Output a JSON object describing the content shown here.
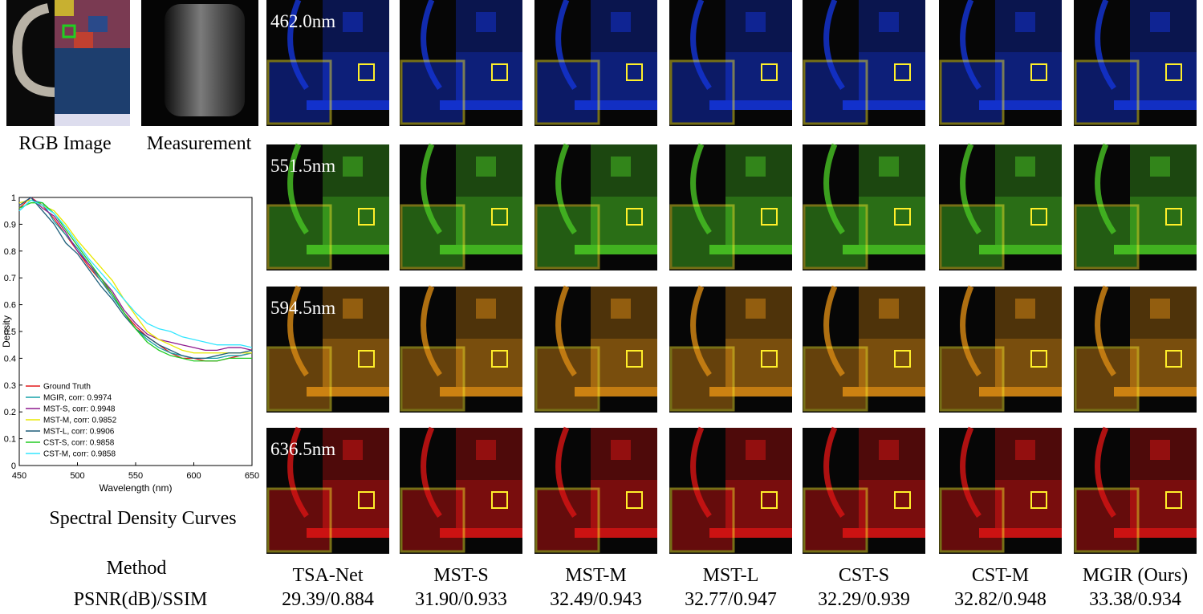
{
  "figure": {
    "inputs": [
      "RGB Image",
      "Measurement"
    ],
    "rows": [
      "462.0nm",
      "551.5nm",
      "594.5nm",
      "636.5nm"
    ],
    "header": {
      "method": "Method",
      "metric": "PSNR(dB)/SSIM"
    },
    "methods": [
      {
        "name": "TSA-Net",
        "score": "29.39/0.884"
      },
      {
        "name": "MST-S",
        "score": "31.90/0.933"
      },
      {
        "name": "MST-M",
        "score": "32.49/0.943"
      },
      {
        "name": "MST-L",
        "score": "32.77/0.947"
      },
      {
        "name": "CST-S",
        "score": "32.29/0.939"
      },
      {
        "name": "CST-M",
        "score": "32.82/0.948"
      },
      {
        "name": "MGIR (Ours)",
        "score": "33.38/0.934"
      }
    ]
  },
  "chart_data": {
    "type": "line",
    "title": "Spectral Density Curves",
    "x_label": "Wavelength (nm)",
    "y_label": "Density",
    "x": [
      450,
      460,
      470,
      480,
      490,
      500,
      510,
      520,
      530,
      540,
      550,
      560,
      570,
      580,
      590,
      600,
      610,
      620,
      630,
      640,
      650
    ],
    "series": [
      {
        "name": "Ground Truth",
        "color": "#e41a1c",
        "values": [
          0.96,
          1.0,
          0.97,
          0.92,
          0.86,
          0.8,
          0.74,
          0.69,
          0.64,
          0.57,
          0.52,
          0.48,
          0.45,
          0.42,
          0.4,
          0.4,
          0.39,
          0.39,
          0.4,
          0.41,
          0.42
        ]
      },
      {
        "name": "MGIR, corr: 0.9974",
        "color": "#17a2a8",
        "values": [
          0.95,
          0.99,
          0.98,
          0.91,
          0.86,
          0.81,
          0.75,
          0.69,
          0.63,
          0.57,
          0.51,
          0.47,
          0.44,
          0.42,
          0.41,
          0.4,
          0.4,
          0.4,
          0.41,
          0.41,
          0.42
        ]
      },
      {
        "name": "MST-S, corr: 0.9948",
        "color": "#8e1a8e",
        "values": [
          0.97,
          1.0,
          0.96,
          0.93,
          0.87,
          0.8,
          0.75,
          0.7,
          0.65,
          0.58,
          0.53,
          0.49,
          0.47,
          0.46,
          0.45,
          0.44,
          0.43,
          0.43,
          0.44,
          0.44,
          0.43
        ]
      },
      {
        "name": "MST-M, corr: 0.9852",
        "color": "#e8e800",
        "values": [
          0.98,
          0.99,
          0.97,
          0.95,
          0.9,
          0.84,
          0.79,
          0.74,
          0.69,
          0.62,
          0.56,
          0.5,
          0.47,
          0.45,
          0.43,
          0.42,
          0.42,
          0.42,
          0.42,
          0.42,
          0.42
        ]
      },
      {
        "name": "MST-L, corr: 0.9906",
        "color": "#1f5f7a",
        "values": [
          0.97,
          1.0,
          0.95,
          0.9,
          0.83,
          0.79,
          0.73,
          0.67,
          0.62,
          0.56,
          0.51,
          0.48,
          0.45,
          0.43,
          0.41,
          0.4,
          0.4,
          0.41,
          0.42,
          0.42,
          0.43
        ]
      },
      {
        "name": "CST-S, corr: 0.9858",
        "color": "#22cc22",
        "values": [
          0.96,
          0.98,
          0.98,
          0.94,
          0.88,
          0.82,
          0.76,
          0.7,
          0.64,
          0.57,
          0.51,
          0.46,
          0.43,
          0.41,
          0.4,
          0.39,
          0.39,
          0.39,
          0.4,
          0.4,
          0.4
        ]
      },
      {
        "name": "CST-M, corr: 0.9858",
        "color": "#33e6ff",
        "values": [
          0.95,
          0.99,
          0.97,
          0.94,
          0.89,
          0.83,
          0.77,
          0.72,
          0.67,
          0.62,
          0.57,
          0.53,
          0.51,
          0.5,
          0.48,
          0.47,
          0.46,
          0.45,
          0.45,
          0.45,
          0.44
        ]
      }
    ],
    "xlim": [
      450,
      650
    ],
    "xticks": [
      450,
      500,
      550,
      600,
      650
    ],
    "ylim": [
      0,
      1
    ],
    "yticks": [
      0,
      0.1,
      0.2,
      0.3,
      0.4,
      0.5,
      0.6,
      0.7,
      0.8,
      0.9,
      1
    ],
    "legend": "lower left"
  }
}
